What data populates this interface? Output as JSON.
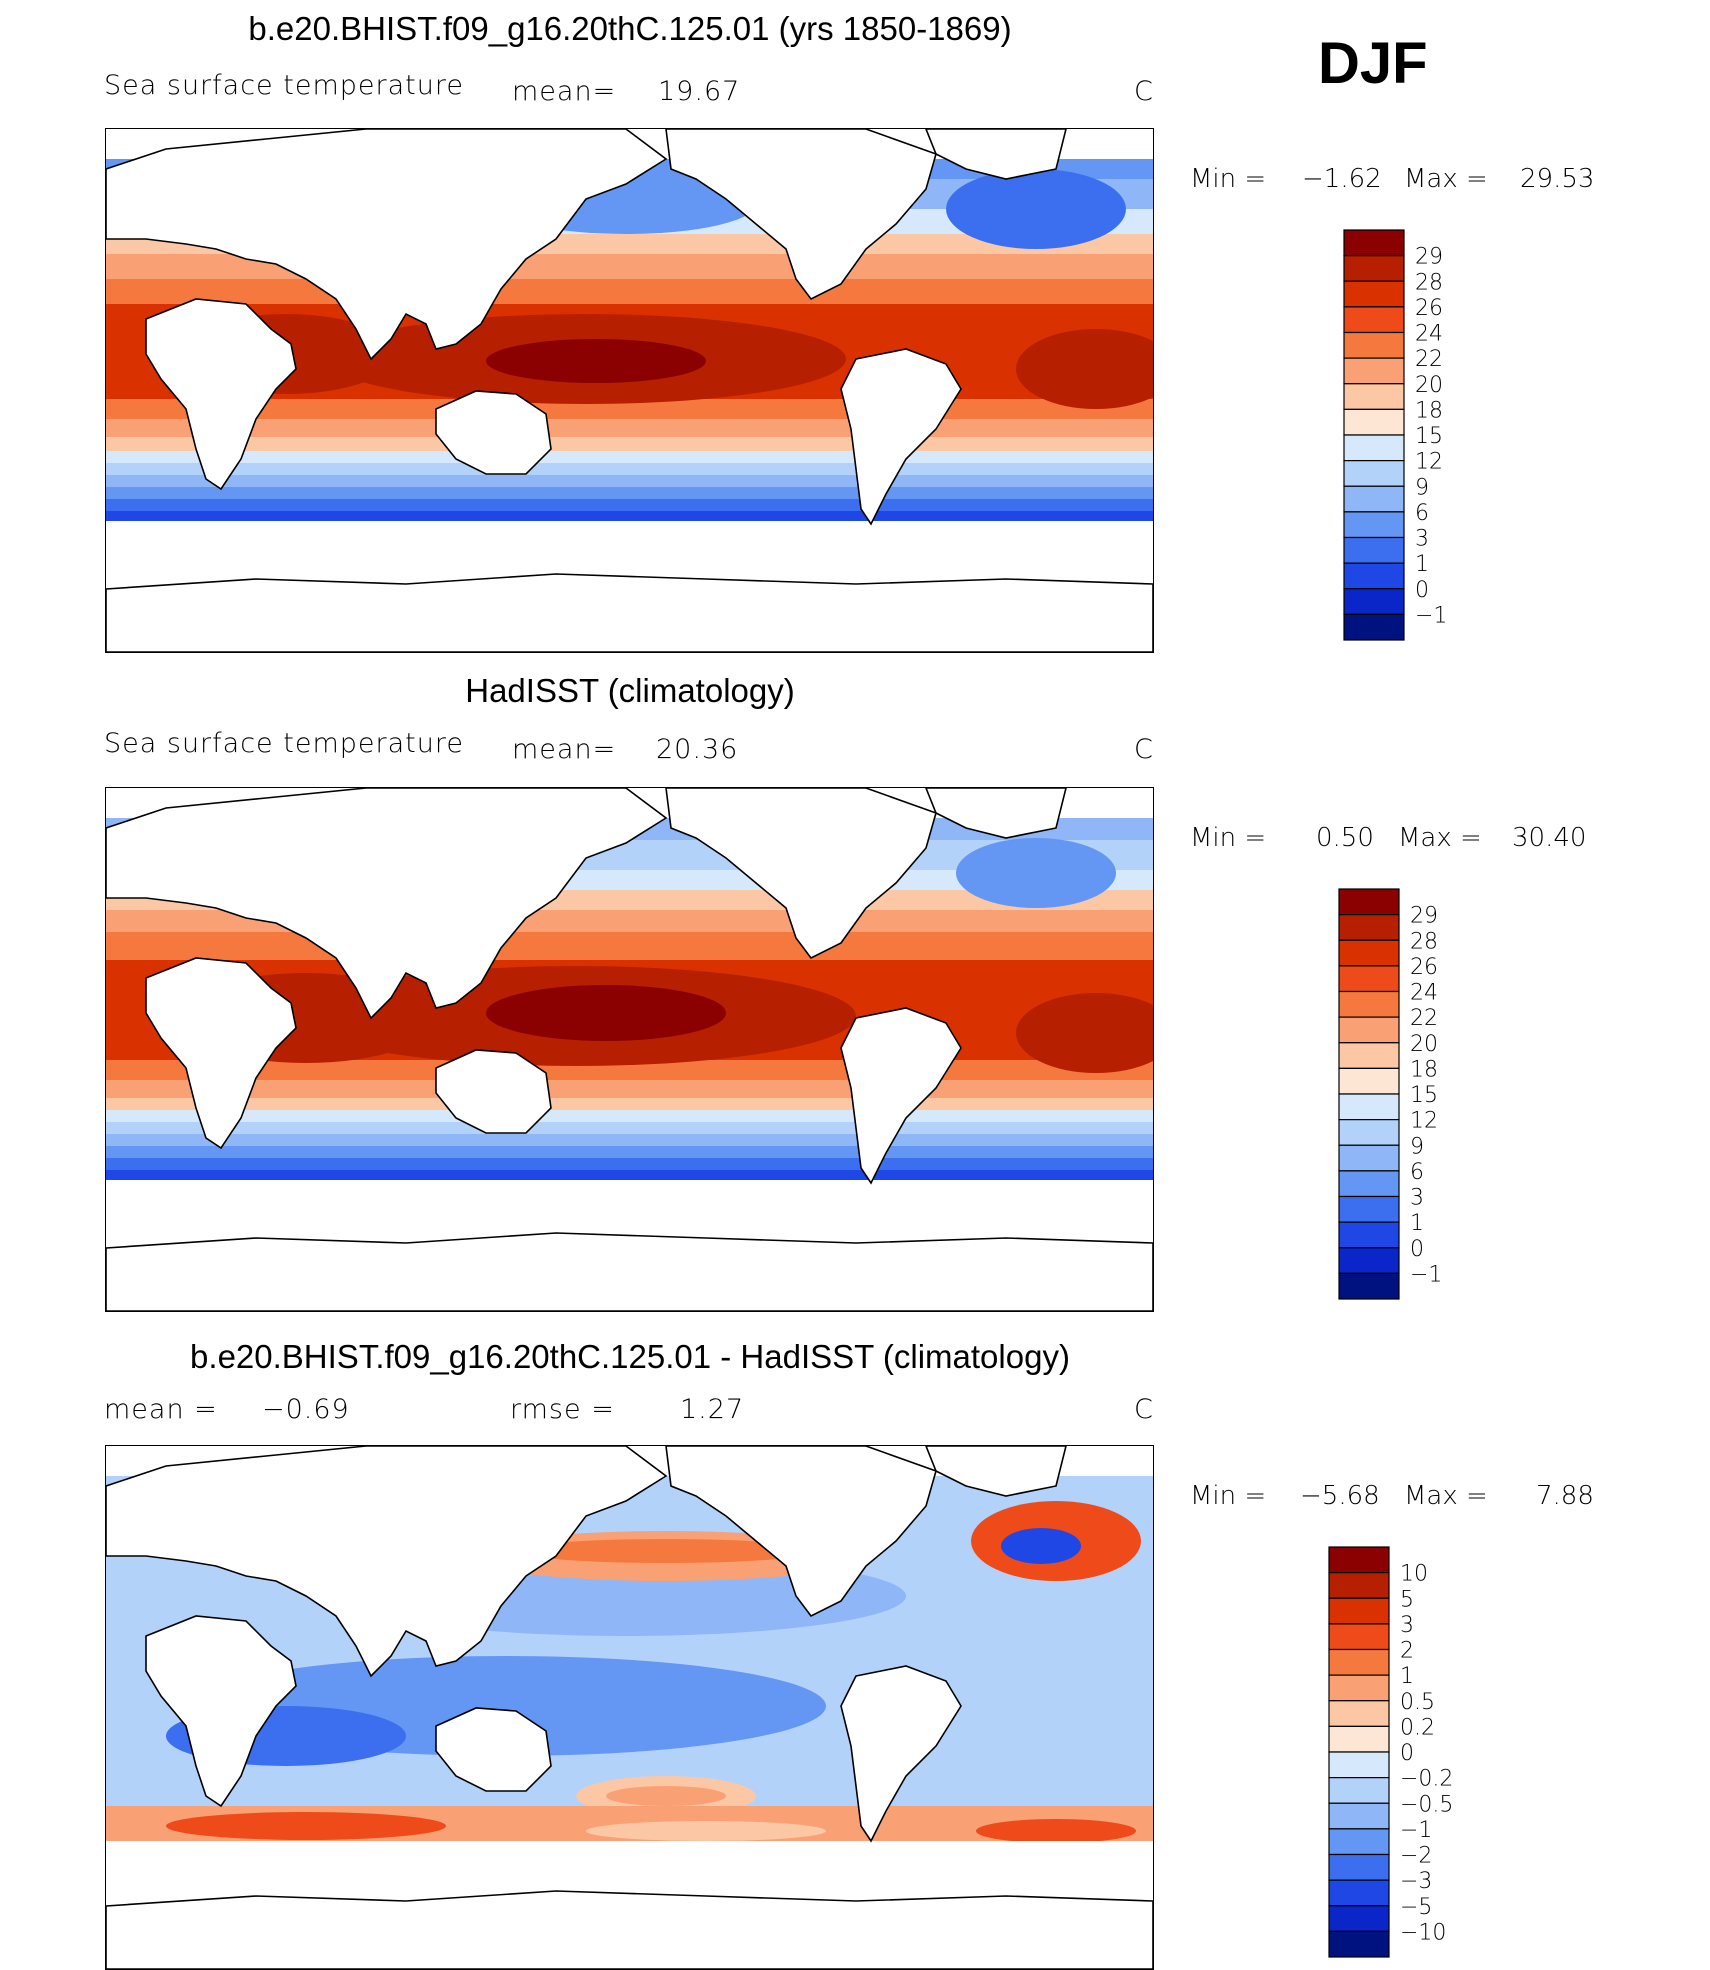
{
  "season": "DJF",
  "panels": [
    {
      "id": "model",
      "title": "b.e20.BHIST.f09_g16.20thC.125.01 (yrs 1850-1869)",
      "left_label": "Sea surface temperature",
      "stat1_label": "mean=",
      "stat1_value": "19.67",
      "stat2_label": "",
      "stat2_value": "",
      "units": "C",
      "min_label": "Min =",
      "min_value": "−1.62",
      "max_label": "Max =",
      "max_value": "29.53",
      "colorbar_labels": [
        "29",
        "28",
        "26",
        "24",
        "22",
        "20",
        "18",
        "15",
        "12",
        "9",
        "6",
        "3",
        "1",
        "0",
        "−1"
      ],
      "colorbar_colors": [
        "#8b0000",
        "#b61f00",
        "#d93200",
        "#ee4a1a",
        "#f5793f",
        "#f9a074",
        "#fcc7a5",
        "#fde7d4",
        "#d6e8fb",
        "#b3d2fa",
        "#8fb7f7",
        "#6496f3",
        "#3b6ff0",
        "#1f47e6",
        "#0b26c8",
        "#00127f"
      ]
    },
    {
      "id": "obs",
      "title": "HadISST (climatology)",
      "left_label": "Sea surface temperature",
      "stat1_label": "mean=",
      "stat1_value": "20.36",
      "stat2_label": "",
      "stat2_value": "",
      "units": "C",
      "min_label": "Min =",
      "min_value": "0.50",
      "max_label": "Max =",
      "max_value": "30.40",
      "colorbar_labels": [
        "29",
        "28",
        "26",
        "24",
        "22",
        "20",
        "18",
        "15",
        "12",
        "9",
        "6",
        "3",
        "1",
        "0",
        "−1"
      ],
      "colorbar_colors": [
        "#8b0000",
        "#b61f00",
        "#d93200",
        "#ee4a1a",
        "#f5793f",
        "#f9a074",
        "#fcc7a5",
        "#fde7d4",
        "#d6e8fb",
        "#b3d2fa",
        "#8fb7f7",
        "#6496f3",
        "#3b6ff0",
        "#1f47e6",
        "#0b26c8",
        "#00127f"
      ]
    },
    {
      "id": "diff",
      "title": "b.e20.BHIST.f09_g16.20thC.125.01 - HadISST (climatology)",
      "left_label": "",
      "stat1_label": "mean =",
      "stat1_value": "−0.69",
      "stat2_label": "rmse =",
      "stat2_value": "1.27",
      "units": "C",
      "min_label": "Min =",
      "min_value": "−5.68",
      "max_label": "Max =",
      "max_value": "7.88",
      "colorbar_labels": [
        "10",
        "5",
        "3",
        "2",
        "1",
        "0.5",
        "0.2",
        "0",
        "−0.2",
        "−0.5",
        "−1",
        "−2",
        "−3",
        "−5",
        "−10"
      ],
      "colorbar_colors": [
        "#8b0000",
        "#b61f00",
        "#d93200",
        "#ee4a1a",
        "#f5793f",
        "#f9a074",
        "#fcc7a5",
        "#fde7d4",
        "#d6e8fb",
        "#b3d2fa",
        "#8fb7f7",
        "#6496f3",
        "#3b6ff0",
        "#1f47e6",
        "#0b26c8",
        "#00127f"
      ]
    }
  ]
}
